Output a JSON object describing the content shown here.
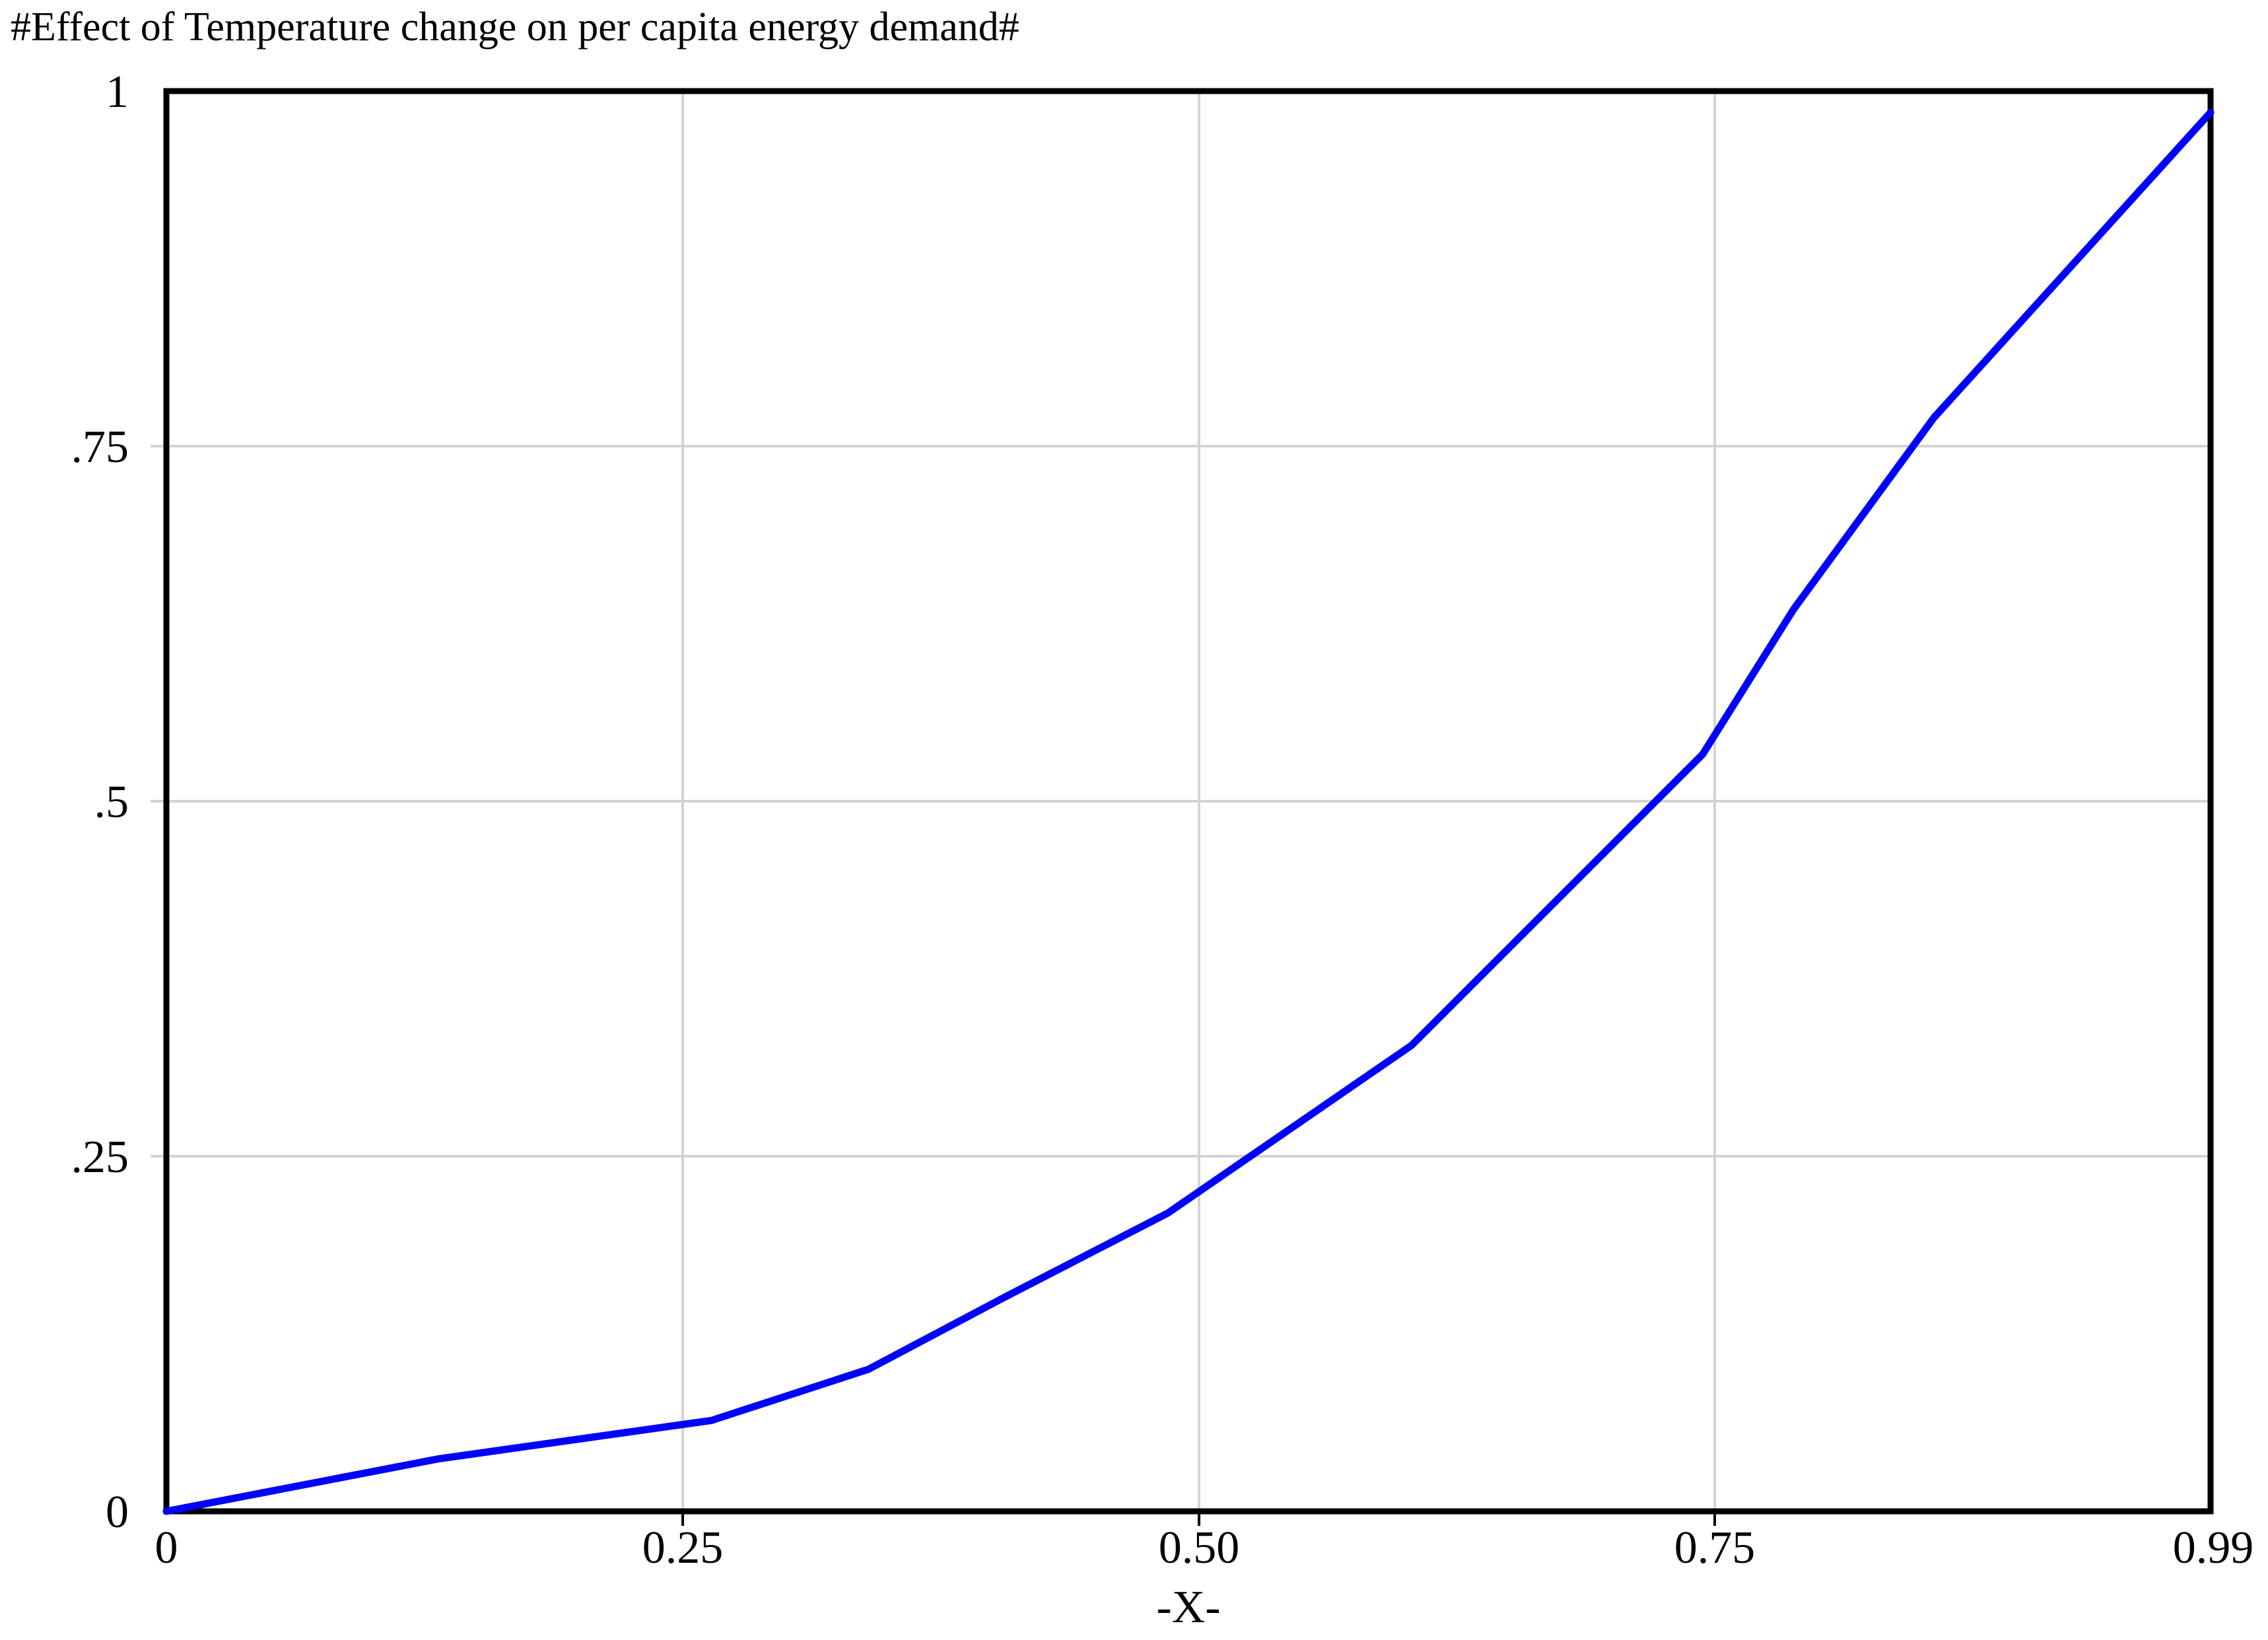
{
  "title": "#Effect of Temperature change on per capita energy demand#",
  "axes": {
    "x_label": "-X-",
    "x_ticks": [
      "0",
      "0.25",
      "0.50",
      "0.75",
      "0.99"
    ],
    "y_ticks": [
      "1",
      ".75",
      ".5",
      ".25",
      "0"
    ]
  },
  "colors": {
    "line": "#0000ff",
    "grid": "#d3d3d3",
    "axis": "#000000",
    "background": "#ffffff"
  },
  "chart_data": {
    "type": "line",
    "title": "#Effect of Temperature change on per capita energy demand#",
    "xlabel": "-X-",
    "ylabel": "",
    "xlim": [
      0,
      0.99
    ],
    "ylim": [
      0,
      1
    ],
    "x_tick_values": [
      0,
      0.25,
      0.5,
      0.75,
      0.99
    ],
    "y_tick_values": [
      0,
      0.25,
      0.5,
      0.75,
      1
    ],
    "grid": true,
    "legend": false,
    "series": [
      {
        "name": "Effect of Temperature change on per capita energy demand",
        "color": "#0000ff",
        "points": [
          [
            0,
            0
          ],
          [
            0.132,
            0.037
          ],
          [
            0.264,
            0.064
          ],
          [
            0.34,
            0.1
          ],
          [
            0.405,
            0.15
          ],
          [
            0.485,
            0.21
          ],
          [
            0.603,
            0.328
          ],
          [
            0.744,
            0.533
          ],
          [
            0.788,
            0.635
          ],
          [
            0.856,
            0.77
          ],
          [
            0.99,
            0.985
          ]
        ]
      }
    ]
  }
}
